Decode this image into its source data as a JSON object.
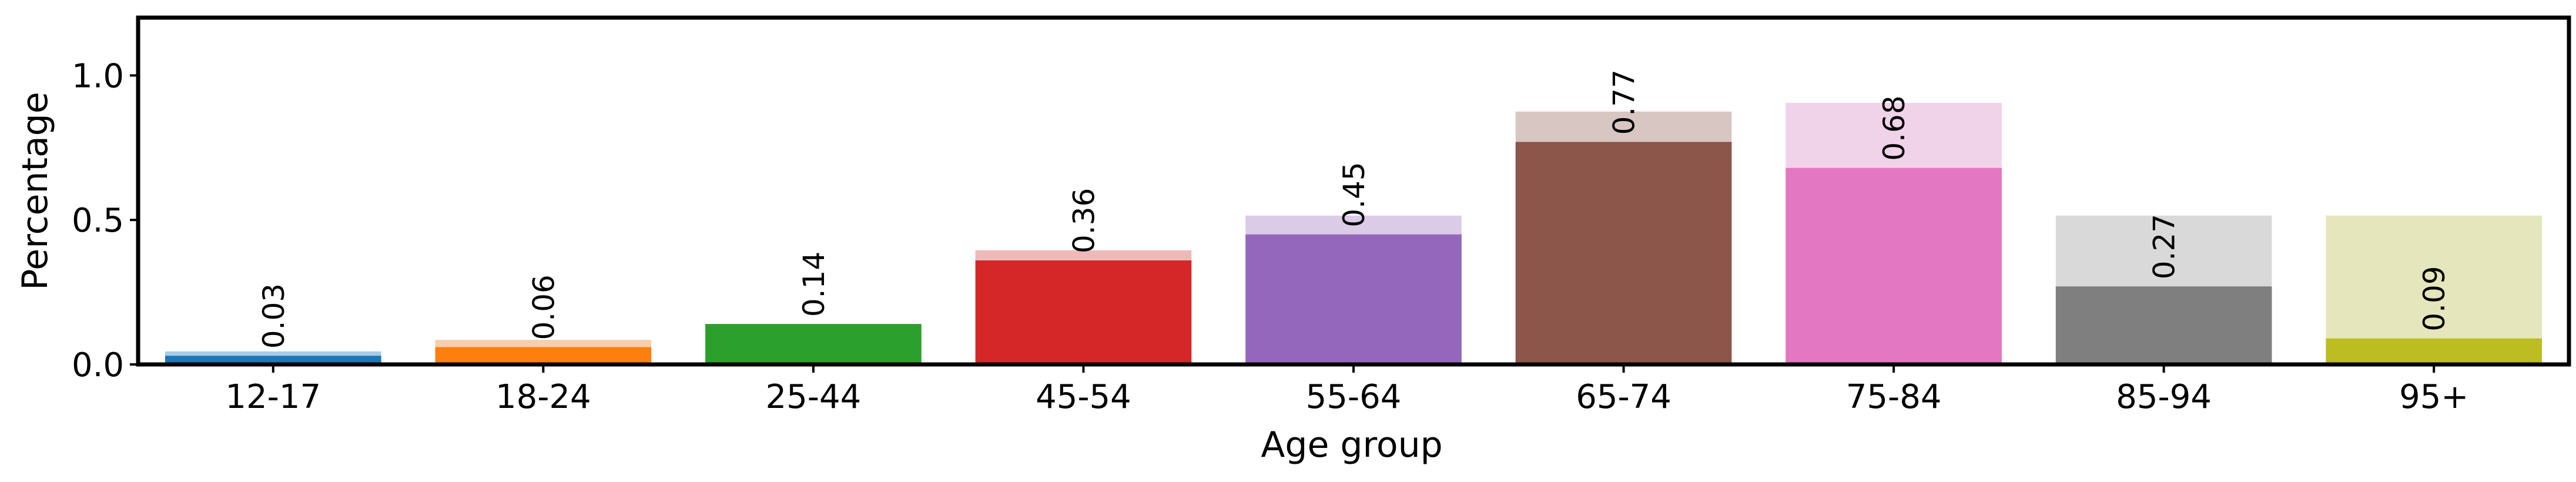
{
  "chart_data": {
    "type": "bar",
    "xlabel": "Age group",
    "ylabel": "Percentage",
    "categories": [
      "12-17",
      "18-24",
      "25-44",
      "45-54",
      "55-64",
      "65-74",
      "75-84",
      "85-94",
      "95+"
    ],
    "series": [
      {
        "values": [
          0.045,
          0.085,
          0.14,
          0.395,
          0.515,
          0.875,
          0.905,
          0.515,
          0.515
        ],
        "colors": [
          "#a6cde8",
          "#f6cfae",
          "#b2deb2",
          "#f0b9b9",
          "#dbcbe6",
          "#d8c6c3",
          "#f1d3e9",
          "#d9d9d9",
          "#e6e6bd"
        ]
      },
      {
        "values": [
          0.03,
          0.06,
          0.14,
          0.36,
          0.45,
          0.77,
          0.68,
          0.27,
          0.09
        ],
        "colors": [
          "#1f77b4",
          "#ff7f0e",
          "#2ca02c",
          "#d62728",
          "#9467bd",
          "#8c564b",
          "#e377c2",
          "#7f7f7f",
          "#bcbd22"
        ]
      }
    ],
    "data_labels": [
      "0.03",
      "0.06",
      "0.14",
      "0.36",
      "0.45",
      "0.77",
      "0.68",
      "0.27",
      "0.09"
    ],
    "yticks": [
      0.0,
      0.5,
      1.0
    ],
    "ytick_labels": [
      "0.0",
      "0.5",
      "1.0"
    ],
    "ylim": [
      0,
      1.2
    ],
    "grid": false,
    "legend": "none"
  }
}
